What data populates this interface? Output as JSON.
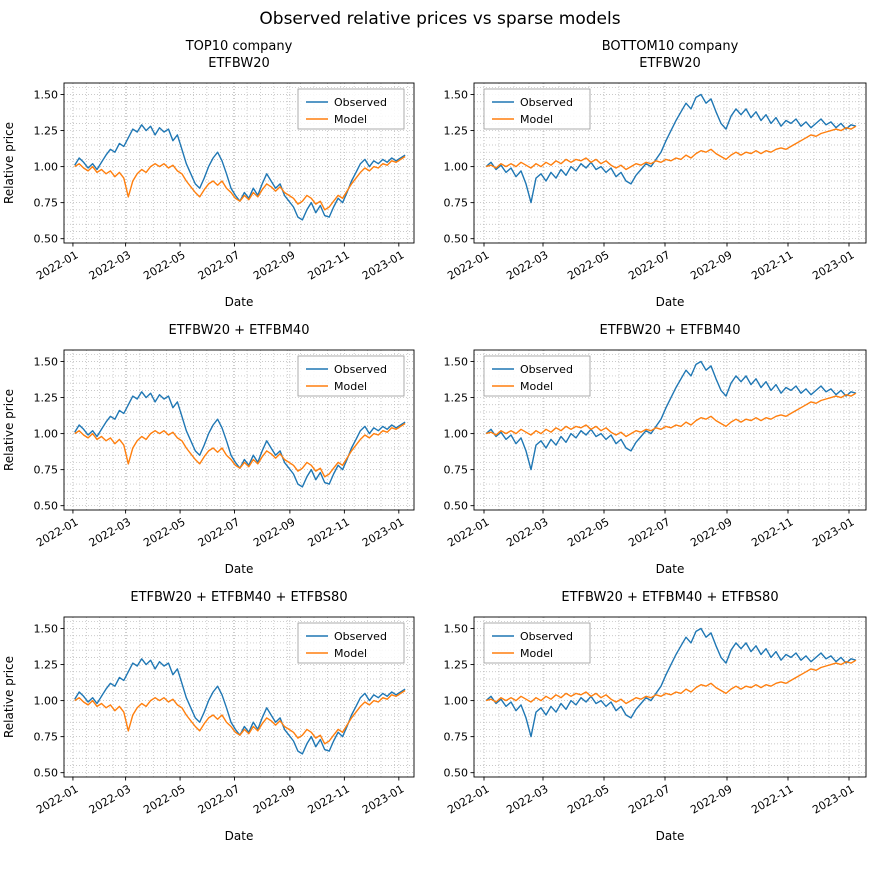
{
  "figure": {
    "title": "Observed relative prices vs sparse models"
  },
  "chart_data": {
    "type": "line",
    "shared": {
      "xlabel": "Date",
      "ylabel": "Relative price",
      "y_ticks": [
        0.5,
        0.75,
        1.0,
        1.25,
        1.5
      ],
      "y_tick_labels": [
        "0.50",
        "0.75",
        "1.00",
        "1.25",
        "1.50"
      ],
      "ylim": [
        0.47,
        1.58
      ],
      "x_ticks_days": [
        0,
        59,
        120,
        181,
        243,
        304,
        365
      ],
      "x_tick_labels": [
        "2022-01",
        "2022-03",
        "2022-05",
        "2022-07",
        "2022-09",
        "2022-11",
        "2023-01"
      ],
      "xlim": [
        -10,
        382
      ],
      "minor_x_step_days": 15,
      "minor_y_step": 0.05,
      "grid": "dotted",
      "legend_labels": [
        "Observed",
        "Model"
      ],
      "colors": {
        "observed": "#1f77b4",
        "model": "#ff7f0e",
        "grid": "#b0b0b0",
        "axis": "#000000"
      }
    },
    "series_library": {
      "days": [
        2,
        7,
        12,
        17,
        22,
        27,
        32,
        37,
        42,
        47,
        52,
        57,
        62,
        67,
        72,
        77,
        82,
        87,
        92,
        97,
        102,
        107,
        112,
        117,
        122,
        127,
        132,
        137,
        142,
        147,
        152,
        157,
        162,
        167,
        172,
        177,
        182,
        187,
        192,
        197,
        202,
        207,
        212,
        217,
        222,
        227,
        232,
        237,
        242,
        247,
        252,
        257,
        262,
        267,
        272,
        277,
        282,
        287,
        292,
        297,
        302,
        307,
        312,
        317,
        322,
        327,
        332,
        337,
        342,
        347,
        352,
        357,
        362,
        367,
        372
      ],
      "top_observed": [
        1.01,
        1.06,
        1.03,
        0.99,
        1.02,
        0.98,
        1.03,
        1.08,
        1.12,
        1.1,
        1.16,
        1.14,
        1.2,
        1.26,
        1.24,
        1.29,
        1.25,
        1.28,
        1.22,
        1.27,
        1.24,
        1.26,
        1.18,
        1.22,
        1.12,
        1.02,
        0.95,
        0.88,
        0.85,
        0.92,
        1.0,
        1.06,
        1.1,
        1.04,
        0.95,
        0.85,
        0.8,
        0.76,
        0.82,
        0.78,
        0.85,
        0.8,
        0.88,
        0.95,
        0.9,
        0.85,
        0.88,
        0.8,
        0.76,
        0.72,
        0.65,
        0.63,
        0.7,
        0.75,
        0.68,
        0.73,
        0.66,
        0.65,
        0.72,
        0.78,
        0.75,
        0.82,
        0.9,
        0.96,
        1.02,
        1.05,
        1.0,
        1.04,
        1.02,
        1.05,
        1.03,
        1.06,
        1.04,
        1.06,
        1.08
      ],
      "top_model": [
        1.0,
        1.02,
        0.99,
        0.97,
        1.0,
        0.96,
        0.98,
        0.95,
        0.97,
        0.93,
        0.96,
        0.92,
        0.79,
        0.9,
        0.95,
        0.98,
        0.96,
        1.0,
        1.02,
        1.0,
        1.02,
        0.99,
        1.01,
        0.97,
        0.95,
        0.9,
        0.86,
        0.82,
        0.79,
        0.84,
        0.88,
        0.9,
        0.87,
        0.9,
        0.85,
        0.82,
        0.78,
        0.76,
        0.8,
        0.77,
        0.82,
        0.79,
        0.84,
        0.88,
        0.86,
        0.83,
        0.86,
        0.82,
        0.8,
        0.78,
        0.74,
        0.76,
        0.8,
        0.78,
        0.74,
        0.76,
        0.7,
        0.72,
        0.76,
        0.8,
        0.78,
        0.83,
        0.88,
        0.92,
        0.96,
        0.99,
        0.97,
        1.0,
        0.99,
        1.02,
        1.01,
        1.04,
        1.03,
        1.05,
        1.07
      ],
      "bottom_observed": [
        1.0,
        1.03,
        0.98,
        1.01,
        0.96,
        0.99,
        0.93,
        0.97,
        0.88,
        0.75,
        0.92,
        0.95,
        0.9,
        0.96,
        0.92,
        0.98,
        0.94,
        1.0,
        0.97,
        1.02,
        0.99,
        1.03,
        0.98,
        1.0,
        0.96,
        0.99,
        0.93,
        0.96,
        0.9,
        0.88,
        0.94,
        0.98,
        1.02,
        1.0,
        1.05,
        1.1,
        1.18,
        1.25,
        1.32,
        1.38,
        1.44,
        1.4,
        1.48,
        1.5,
        1.44,
        1.47,
        1.38,
        1.3,
        1.26,
        1.35,
        1.4,
        1.36,
        1.4,
        1.34,
        1.38,
        1.32,
        1.36,
        1.3,
        1.34,
        1.28,
        1.32,
        1.3,
        1.33,
        1.28,
        1.31,
        1.27,
        1.3,
        1.33,
        1.29,
        1.31,
        1.27,
        1.3,
        1.26,
        1.29,
        1.28
      ],
      "bottom_model": [
        1.0,
        1.01,
        0.99,
        1.02,
        1.0,
        1.02,
        1.0,
        1.03,
        1.01,
        0.99,
        1.02,
        1.0,
        1.03,
        1.01,
        1.04,
        1.02,
        1.05,
        1.03,
        1.05,
        1.04,
        1.06,
        1.03,
        1.05,
        1.02,
        1.04,
        1.01,
        0.99,
        1.01,
        0.98,
        1.0,
        1.02,
        1.01,
        1.03,
        1.02,
        1.04,
        1.03,
        1.05,
        1.04,
        1.06,
        1.05,
        1.08,
        1.06,
        1.09,
        1.11,
        1.1,
        1.12,
        1.09,
        1.07,
        1.05,
        1.08,
        1.1,
        1.08,
        1.1,
        1.09,
        1.11,
        1.09,
        1.11,
        1.1,
        1.12,
        1.13,
        1.12,
        1.14,
        1.16,
        1.18,
        1.2,
        1.22,
        1.21,
        1.23,
        1.24,
        1.25,
        1.26,
        1.25,
        1.27,
        1.26,
        1.28
      ]
    },
    "subplots": [
      {
        "title": "TOP10 company\nETFBW20",
        "column": "left",
        "legend_pos": "upper-right",
        "show_ylabel": true,
        "series": [
          {
            "name": "Observed",
            "ref": "top_observed",
            "color": "observed"
          },
          {
            "name": "Model",
            "ref": "top_model",
            "color": "model"
          }
        ]
      },
      {
        "title": "BOTTOM10 company\nETFBW20",
        "column": "right",
        "legend_pos": "upper-left",
        "show_ylabel": false,
        "series": [
          {
            "name": "Observed",
            "ref": "bottom_observed",
            "color": "observed"
          },
          {
            "name": "Model",
            "ref": "bottom_model",
            "color": "model"
          }
        ]
      },
      {
        "title": "ETFBW20 + ETFBM40",
        "column": "left",
        "legend_pos": "upper-right",
        "show_ylabel": true,
        "series": [
          {
            "name": "Observed",
            "ref": "top_observed",
            "color": "observed"
          },
          {
            "name": "Model",
            "ref": "top_model",
            "color": "model"
          }
        ]
      },
      {
        "title": "ETFBW20 + ETFBM40",
        "column": "right",
        "legend_pos": "upper-left",
        "show_ylabel": false,
        "series": [
          {
            "name": "Observed",
            "ref": "bottom_observed",
            "color": "observed"
          },
          {
            "name": "Model",
            "ref": "bottom_model",
            "color": "model"
          }
        ]
      },
      {
        "title": "ETFBW20 + ETFBM40 + ETFBS80",
        "column": "left",
        "legend_pos": "upper-right",
        "show_ylabel": true,
        "series": [
          {
            "name": "Observed",
            "ref": "top_observed",
            "color": "observed"
          },
          {
            "name": "Model",
            "ref": "top_model",
            "color": "model"
          }
        ]
      },
      {
        "title": "ETFBW20 + ETFBM40 + ETFBS80",
        "column": "right",
        "legend_pos": "upper-left",
        "show_ylabel": false,
        "series": [
          {
            "name": "Observed",
            "ref": "bottom_observed",
            "color": "observed"
          },
          {
            "name": "Model",
            "ref": "bottom_model",
            "color": "model"
          }
        ]
      }
    ]
  }
}
